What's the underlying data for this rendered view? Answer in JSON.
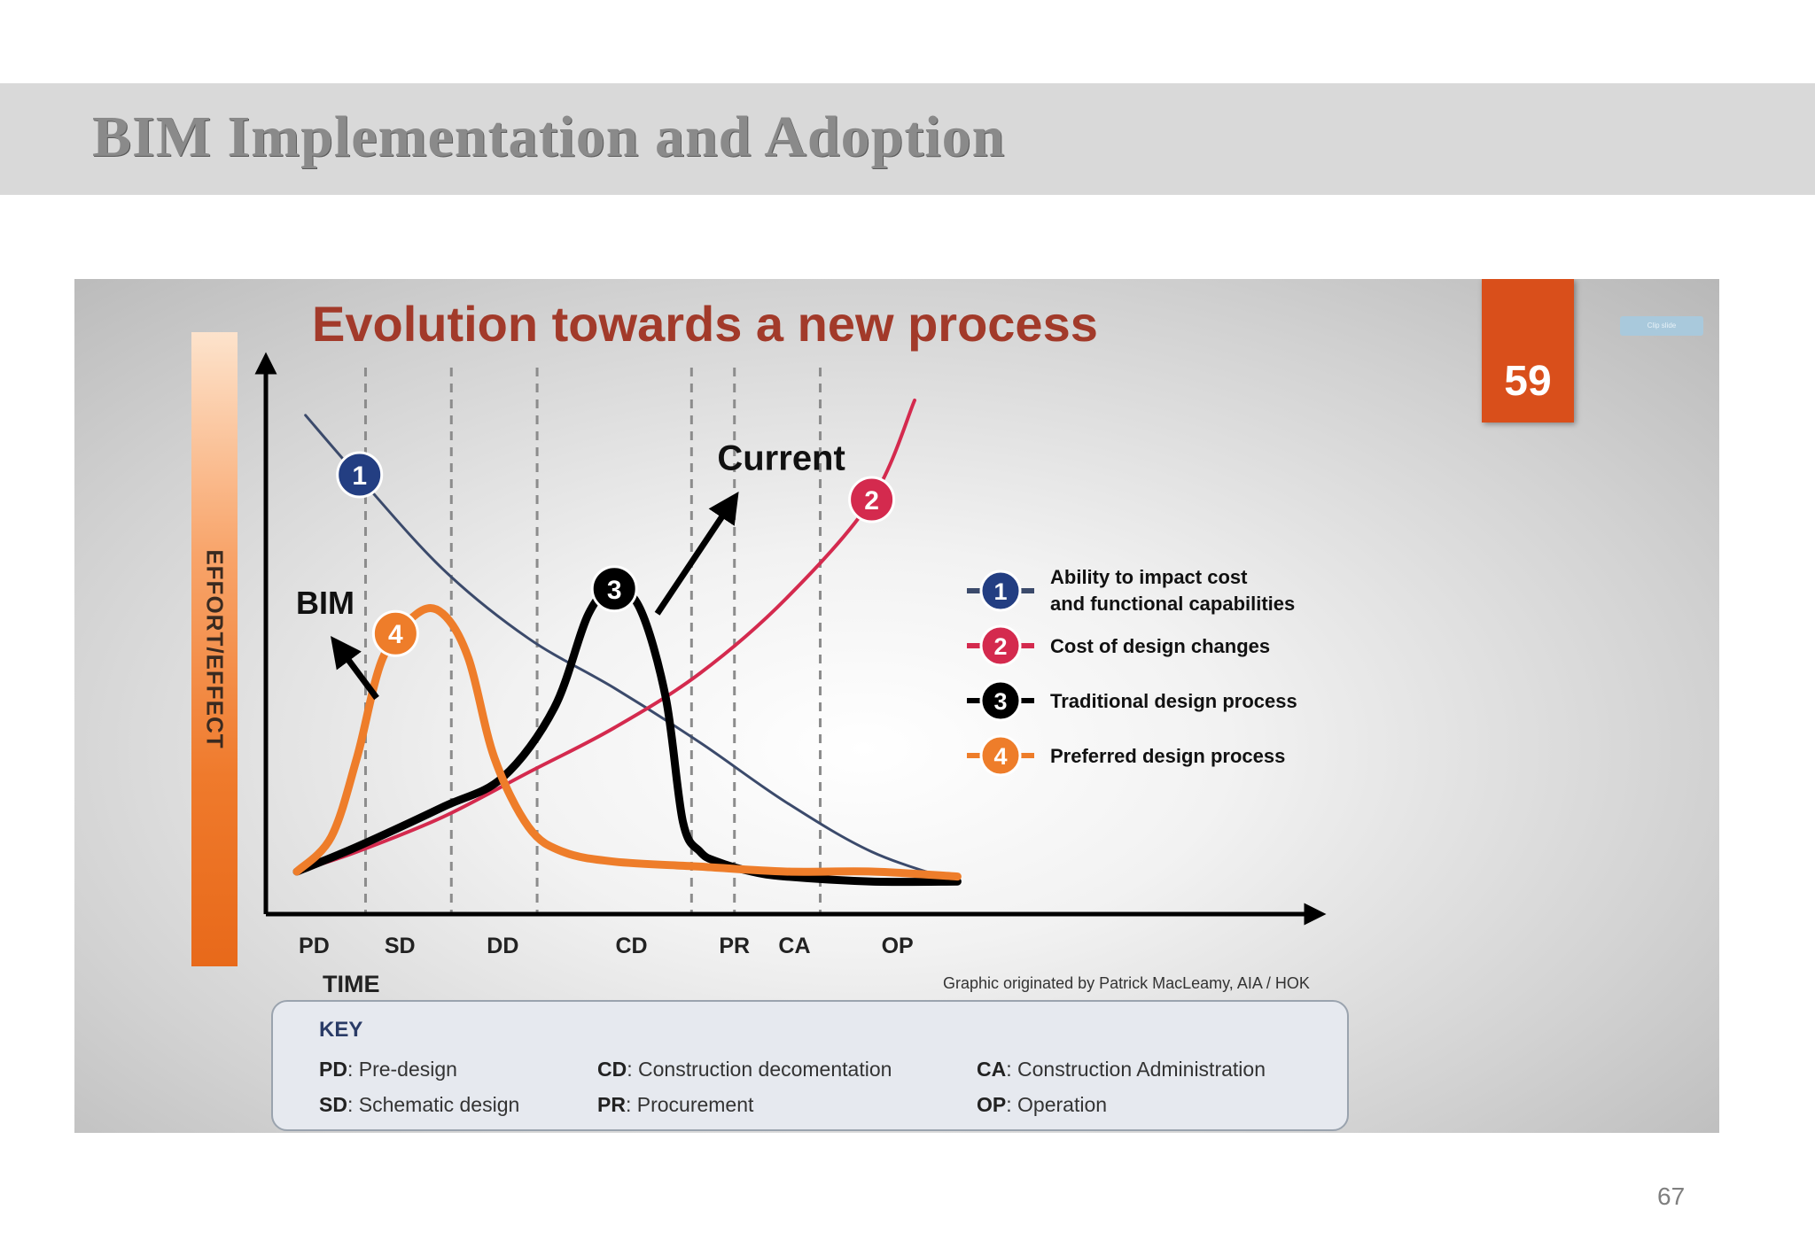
{
  "slide": {
    "title": "BIM Implementation and Adoption",
    "page_number": "67"
  },
  "figure": {
    "badge_number": "59",
    "mini_button_text": "Clip slide",
    "credit": "Graphic originated by Patrick MacLeamy, AIA / HOK",
    "key": {
      "title": "KEY",
      "col1": [
        {
          "abbr": "PD",
          "text": ": Pre-design"
        },
        {
          "abbr": "SD",
          "text": ": Schematic design"
        }
      ],
      "col2": [
        {
          "abbr": "CD",
          "text": ": Construction decomentation"
        },
        {
          "abbr": "PR",
          "text": ": Procurement"
        }
      ],
      "col3": [
        {
          "abbr": "CA",
          "text": ": Construction Administration"
        },
        {
          "abbr": "OP",
          "text": ": Operation"
        }
      ]
    }
  },
  "chart_data": {
    "type": "line",
    "title": "Evolution towards a new process",
    "xlabel": "TIME",
    "ylabel": "EFFORT/EFFECT",
    "x_range": [
      0,
      100
    ],
    "y_range": [
      0,
      100
    ],
    "categories": [
      {
        "label": "PD",
        "x": 5
      },
      {
        "label": "SD",
        "x": 15
      },
      {
        "label": "DD",
        "x": 27
      },
      {
        "label": "CD",
        "x": 42
      },
      {
        "label": "PR",
        "x": 54
      },
      {
        "label": "CA",
        "x": 61
      },
      {
        "label": "OP",
        "x": 73
      }
    ],
    "phase_boundaries": [
      11,
      21,
      31,
      49,
      54,
      64
    ],
    "annotations": [
      {
        "text": "Current",
        "series": 3
      },
      {
        "text": "BIM",
        "series": 4
      }
    ],
    "legend_position": "right",
    "colors": {
      "series1": "#3b4a6b",
      "series2": "#d42a4e",
      "series3": "#000000",
      "series4": "#ee7d2a",
      "badge1": "#233e82",
      "title": "#a23a2a"
    },
    "series": [
      {
        "id": 1,
        "name": "Ability to impact cost and functional capabilities",
        "color": "#3b4a6b",
        "x": [
          4,
          10,
          20,
          30,
          40,
          50,
          60,
          70,
          80
        ],
        "y": [
          97,
          85,
          66,
          52,
          42,
          31,
          19,
          9,
          3
        ]
      },
      {
        "id": 2,
        "name": "Cost of design changes",
        "color": "#d42a4e",
        "x": [
          3,
          10,
          20,
          30,
          40,
          50,
          60,
          70,
          75
        ],
        "y": [
          5,
          9,
          16,
          25,
          34,
          45,
          60,
          80,
          100
        ]
      },
      {
        "id": 3,
        "name": "Traditional design process",
        "color": "#000000",
        "x": [
          3,
          10,
          20,
          27,
          33,
          37,
          40,
          43,
          46,
          48,
          50,
          52,
          56,
          60,
          70,
          80
        ],
        "y": [
          5,
          10,
          18,
          24,
          38,
          57,
          62,
          58,
          40,
          15,
          9,
          7,
          5,
          4,
          3,
          3
        ]
      },
      {
        "id": 4,
        "name": "Preferred design process",
        "color": "#ee7d2a",
        "x": [
          3,
          7,
          10,
          13,
          17,
          20,
          23,
          26,
          30,
          34,
          40,
          50,
          60,
          70,
          80
        ],
        "y": [
          5,
          12,
          28,
          48,
          57,
          57,
          48,
          28,
          14,
          9,
          7,
          6,
          5,
          5,
          4
        ]
      }
    ]
  }
}
